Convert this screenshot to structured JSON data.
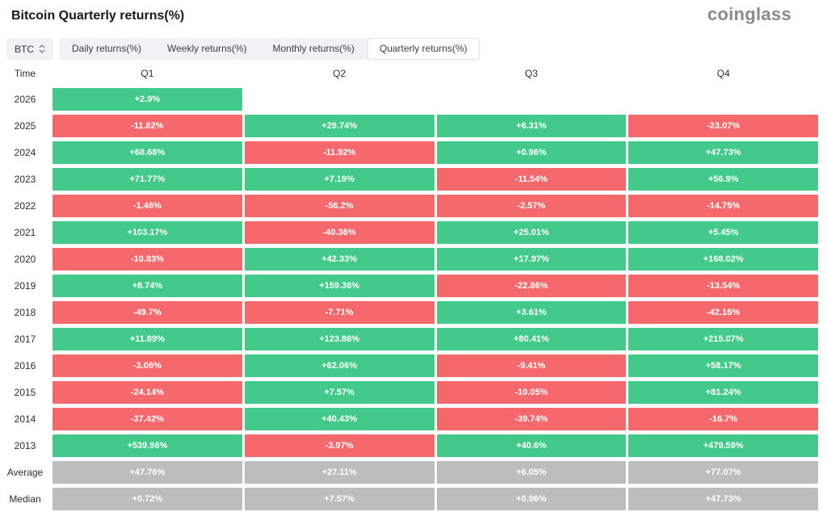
{
  "header": {
    "title": "Bitcoin Quarterly returns(%)",
    "logo": "coinglass"
  },
  "controls": {
    "symbol_select": {
      "value": "BTC",
      "icon": "up-down-sorter-icon"
    },
    "tabs": [
      {
        "label": "Daily returns(%)",
        "active": false
      },
      {
        "label": "Weekly returns(%)",
        "active": false
      },
      {
        "label": "Monthly returns(%)",
        "active": false
      },
      {
        "label": "Quarterly returns(%)",
        "active": true
      }
    ]
  },
  "colors": {
    "positive": "#42c98b",
    "negative": "#f5696d",
    "summary": "#bdbdbd",
    "cell_text": "#ffffff"
  },
  "chart_data": {
    "type": "heatmap",
    "title": "Bitcoin Quarterly returns(%)",
    "columns": [
      "Time",
      "Q1",
      "Q2",
      "Q3",
      "Q4"
    ],
    "rows": [
      {
        "label": "2026",
        "summary": false,
        "values": [
          "+2.9%",
          null,
          null,
          null
        ]
      },
      {
        "label": "2025",
        "summary": false,
        "values": [
          "-11.82%",
          "+29.74%",
          "+6.31%",
          "-23.07%"
        ]
      },
      {
        "label": "2024",
        "summary": false,
        "values": [
          "+68.68%",
          "-11.92%",
          "+0.96%",
          "+47.73%"
        ]
      },
      {
        "label": "2023",
        "summary": false,
        "values": [
          "+71.77%",
          "+7.19%",
          "-11.54%",
          "+56.9%"
        ]
      },
      {
        "label": "2022",
        "summary": false,
        "values": [
          "-1.46%",
          "-56.2%",
          "-2.57%",
          "-14.75%"
        ]
      },
      {
        "label": "2021",
        "summary": false,
        "values": [
          "+103.17%",
          "-40.36%",
          "+25.01%",
          "+5.45%"
        ]
      },
      {
        "label": "2020",
        "summary": false,
        "values": [
          "-10.83%",
          "+42.33%",
          "+17.97%",
          "+168.02%"
        ]
      },
      {
        "label": "2019",
        "summary": false,
        "values": [
          "+8.74%",
          "+159.36%",
          "-22.86%",
          "-13.54%"
        ]
      },
      {
        "label": "2018",
        "summary": false,
        "values": [
          "-49.7%",
          "-7.71%",
          "+3.61%",
          "-42.16%"
        ]
      },
      {
        "label": "2017",
        "summary": false,
        "values": [
          "+11.89%",
          "+123.86%",
          "+80.41%",
          "+215.07%"
        ]
      },
      {
        "label": "2016",
        "summary": false,
        "values": [
          "-3.06%",
          "+62.06%",
          "-9.41%",
          "+58.17%"
        ]
      },
      {
        "label": "2015",
        "summary": false,
        "values": [
          "-24.14%",
          "+7.57%",
          "-10.05%",
          "+81.24%"
        ]
      },
      {
        "label": "2014",
        "summary": false,
        "values": [
          "-37.42%",
          "+40.43%",
          "-39.74%",
          "-16.7%"
        ]
      },
      {
        "label": "2013",
        "summary": false,
        "values": [
          "+539.96%",
          "-3.97%",
          "+40.6%",
          "+479.59%"
        ]
      },
      {
        "label": "Average",
        "summary": true,
        "values": [
          "+47.76%",
          "+27.11%",
          "+6.05%",
          "+77.07%"
        ]
      },
      {
        "label": "Median",
        "summary": true,
        "values": [
          "+0.72%",
          "+7.57%",
          "+0.96%",
          "+47.73%"
        ]
      }
    ]
  }
}
